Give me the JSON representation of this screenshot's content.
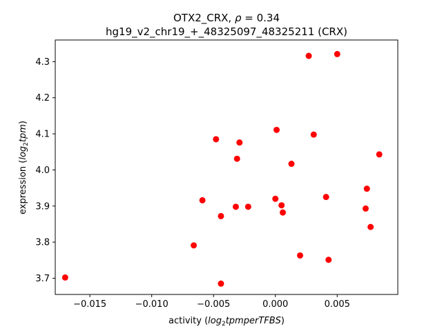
{
  "chart_data": {
    "type": "scatter",
    "title_line1_prefix": "OTX2_CRX, ",
    "title_line1_symbol": "ρ",
    "title_line1_suffix": " = 0.34",
    "title_line2": "hg19_v2_chr19_+_48325097_48325211 (CRX)",
    "xlabel_prefix": "activity (",
    "xlabel_math_a": "log",
    "xlabel_math_sub": "2",
    "xlabel_math_b": "tpmperTFBS",
    "xlabel_suffix": ")",
    "ylabel_prefix": "expression (",
    "ylabel_math_a": "log",
    "ylabel_math_sub": "2",
    "ylabel_math_b": "tpm",
    "ylabel_suffix": ")",
    "xlim": [
      -0.0178,
      0.0099
    ],
    "ylim": [
      3.655,
      4.36
    ],
    "xticks": [
      -0.015,
      -0.01,
      -0.005,
      0.0,
      0.005
    ],
    "xtick_labels": [
      "−0.015",
      "−0.010",
      "−0.005",
      "0.000",
      "0.005"
    ],
    "yticks": [
      3.7,
      3.8,
      3.9,
      4.0,
      4.1,
      4.2,
      4.3
    ],
    "ytick_labels": [
      "3.7",
      "3.8",
      "3.9",
      "4.0",
      "4.1",
      "4.2",
      "4.3"
    ],
    "grid": false,
    "marker_color": "#ff0000",
    "points": [
      {
        "x": -0.017,
        "y": 3.702
      },
      {
        "x": -0.0066,
        "y": 3.791
      },
      {
        "x": -0.0059,
        "y": 3.916
      },
      {
        "x": -0.0048,
        "y": 4.085
      },
      {
        "x": -0.0044,
        "y": 3.872
      },
      {
        "x": -0.0044,
        "y": 3.685
      },
      {
        "x": -0.0032,
        "y": 3.898
      },
      {
        "x": -0.0031,
        "y": 4.031
      },
      {
        "x": -0.0029,
        "y": 4.076
      },
      {
        "x": -0.0022,
        "y": 3.898
      },
      {
        "x": 0.0,
        "y": 3.92
      },
      {
        "x": 0.0001,
        "y": 4.111
      },
      {
        "x": 0.0005,
        "y": 3.902
      },
      {
        "x": 0.0006,
        "y": 3.882
      },
      {
        "x": 0.0013,
        "y": 4.017
      },
      {
        "x": 0.002,
        "y": 3.763
      },
      {
        "x": 0.0027,
        "y": 4.316
      },
      {
        "x": 0.0031,
        "y": 4.098
      },
      {
        "x": 0.0041,
        "y": 3.925
      },
      {
        "x": 0.0043,
        "y": 3.751
      },
      {
        "x": 0.005,
        "y": 4.321
      },
      {
        "x": 0.0073,
        "y": 3.893
      },
      {
        "x": 0.0074,
        "y": 3.948
      },
      {
        "x": 0.0077,
        "y": 3.842
      },
      {
        "x": 0.0084,
        "y": 4.043
      }
    ]
  }
}
